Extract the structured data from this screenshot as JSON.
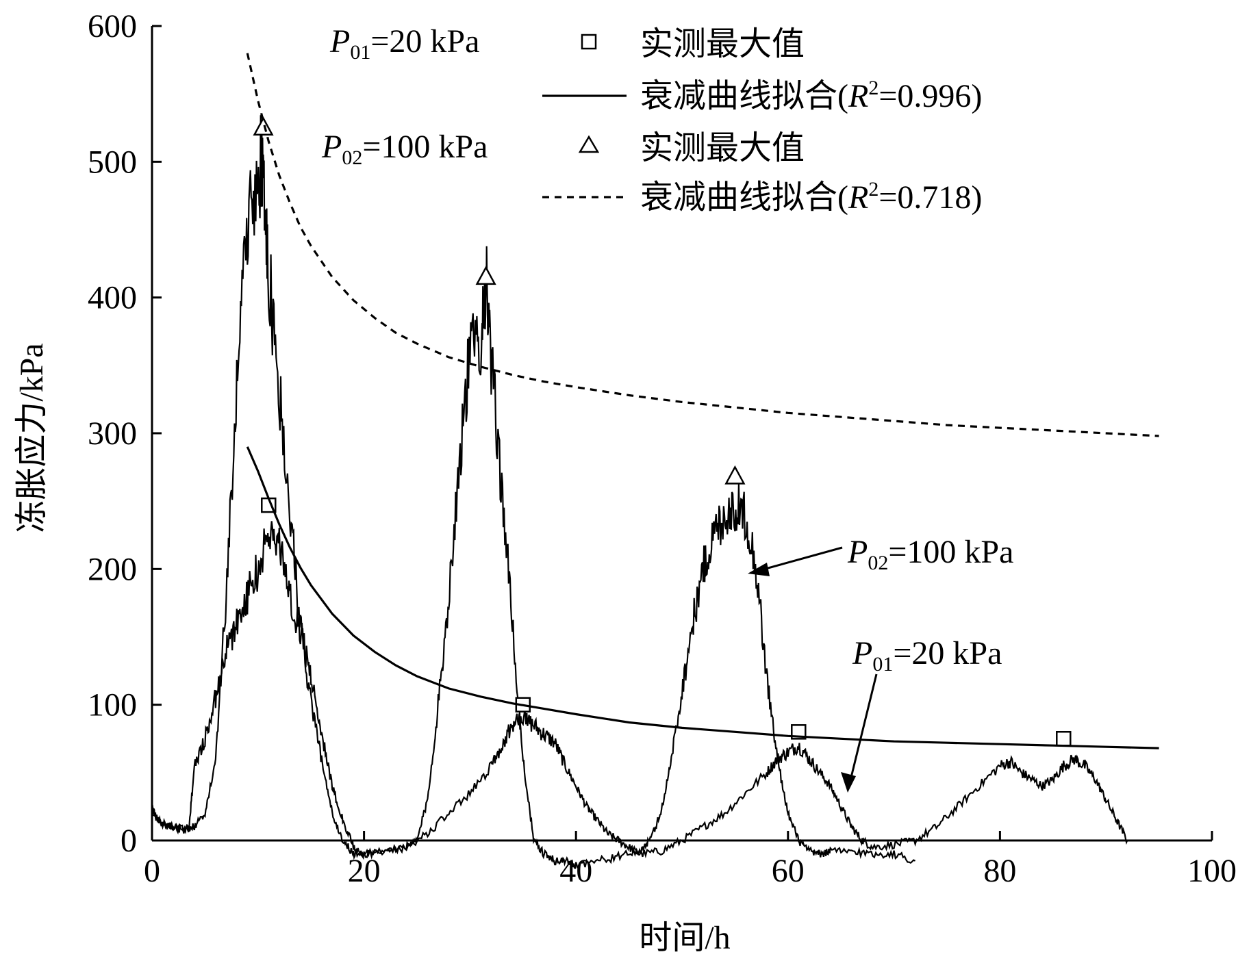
{
  "chart_data": {
    "type": "line",
    "xlabel": "时间/h",
    "ylabel": "冻胀应力/kPa",
    "xlim": [
      0,
      100
    ],
    "ylim": [
      0,
      600
    ],
    "x_ticks": [
      0,
      20,
      40,
      60,
      80,
      100
    ],
    "y_ticks": [
      0,
      100,
      200,
      300,
      400,
      500,
      600
    ],
    "grid": false,
    "legend": {
      "placement": "top-right",
      "group1_label": "=20 kPa",
      "group2_label": "=100 kPa",
      "marker_label": "实测最大值",
      "fit_label_prefix": "衰减曲线拟合(",
      "r2_value_1": "=0.996)",
      "r2_value_2": "=0.718)"
    },
    "annotations": [
      {
        "text": "=100 kPa",
        "subscript": "02",
        "points_to": [
          55,
          235
        ]
      },
      {
        "text": "=20 kPa",
        "subscript": "01",
        "points_to": [
          65,
          40
        ]
      }
    ],
    "series": [
      {
        "name": "P01=20 kPa",
        "kind": "measured",
        "x": [
          0,
          0.5,
          1,
          2,
          3,
          3.5,
          4,
          5,
          6,
          7,
          8,
          9,
          10,
          11,
          12,
          13,
          14,
          15,
          16,
          17,
          18,
          19,
          20,
          22,
          24,
          26,
          28,
          30,
          32,
          33,
          34,
          35,
          36,
          37,
          38,
          39,
          40,
          41,
          42,
          43,
          44,
          45,
          46,
          48,
          50,
          52,
          54,
          56,
          58,
          59,
          60,
          61,
          62,
          63,
          64,
          65,
          66,
          67,
          68,
          70,
          72,
          74,
          76,
          78,
          80,
          81,
          82,
          83,
          84,
          85,
          86,
          87,
          88,
          89,
          90,
          91,
          92
        ],
        "y": [
          25,
          15,
          12,
          10,
          8,
          10,
          55,
          75,
          105,
          140,
          160,
          180,
          200,
          225,
          220,
          180,
          155,
          120,
          80,
          40,
          15,
          -5,
          -10,
          -8,
          -5,
          5,
          20,
          35,
          55,
          70,
          85,
          90,
          85,
          78,
          72,
          55,
          40,
          25,
          15,
          5,
          0,
          -5,
          -10,
          -8,
          0,
          10,
          20,
          35,
          50,
          60,
          65,
          70,
          60,
          50,
          40,
          25,
          10,
          0,
          -5,
          -3,
          0,
          10,
          25,
          40,
          55,
          58,
          50,
          45,
          40,
          45,
          55,
          60,
          55,
          45,
          30,
          15,
          0
        ]
      },
      {
        "name": "P02=100 kPa",
        "kind": "measured",
        "x": [
          0,
          1,
          3,
          4,
          5,
          6,
          7,
          8,
          9,
          10,
          10.5,
          11,
          12,
          13,
          14,
          15,
          16,
          17,
          18,
          19,
          20,
          22,
          24,
          25,
          26,
          27,
          28,
          29,
          30,
          31,
          31.5,
          32,
          33,
          34,
          35,
          36,
          37,
          38,
          39,
          40,
          42,
          44,
          46,
          47,
          48,
          49,
          50,
          51,
          52,
          53,
          54,
          55,
          56,
          57,
          58,
          59,
          60,
          61,
          62,
          63,
          64,
          66,
          68,
          70,
          72
        ],
        "y": [
          20,
          12,
          8,
          10,
          20,
          60,
          180,
          330,
          460,
          490,
          500,
          420,
          330,
          240,
          160,
          100,
          60,
          20,
          0,
          -10,
          -10,
          -8,
          -5,
          0,
          30,
          100,
          180,
          280,
          360,
          370,
          415,
          350,
          260,
          160,
          60,
          0,
          -10,
          -15,
          -15,
          -18,
          -15,
          -12,
          -8,
          0,
          20,
          60,
          110,
          160,
          200,
          225,
          240,
          245,
          240,
          200,
          120,
          60,
          20,
          0,
          -8,
          -10,
          -8,
          -8,
          -10,
          -10,
          -15
        ]
      },
      {
        "name": "P01 实测最大值",
        "kind": "max-square",
        "x": [
          11,
          35,
          61,
          86
        ],
        "y": [
          247,
          100,
          80,
          75
        ]
      },
      {
        "name": "P02 实测最大值",
        "kind": "max-triangle",
        "x": [
          10.5,
          31.5,
          55
        ],
        "y": [
          525,
          415,
          268
        ]
      },
      {
        "name": "衰减曲线拟合(R2=0.996)",
        "kind": "fit-solid",
        "x": [
          9,
          10,
          11,
          12,
          13,
          14,
          15,
          17,
          19,
          21,
          23,
          25,
          28,
          31,
          34,
          37,
          40,
          45,
          50,
          55,
          60,
          65,
          70,
          75,
          80,
          85,
          90,
          95
        ],
        "y": [
          290,
          272,
          252,
          233,
          216,
          201,
          188,
          167,
          151,
          139,
          129,
          121,
          112,
          106,
          101,
          97,
          93,
          87,
          83,
          80,
          77,
          75,
          73,
          72,
          71,
          70,
          69,
          68
        ]
      },
      {
        "name": "衰减曲线拟合(R2=0.718)",
        "kind": "fit-dashed",
        "x": [
          9,
          10,
          11,
          12,
          13,
          14,
          15,
          17,
          19,
          21,
          23,
          25,
          28,
          31,
          34,
          37,
          40,
          45,
          50,
          55,
          60,
          65,
          70,
          75,
          80,
          85,
          90,
          95
        ],
        "y": [
          580,
          545,
          515,
          490,
          470,
          452,
          438,
          415,
          398,
          385,
          374,
          366,
          356,
          349,
          343,
          338,
          334,
          328,
          323,
          319,
          315,
          312,
          309,
          306,
          304,
          302,
          300,
          298
        ]
      }
    ]
  }
}
